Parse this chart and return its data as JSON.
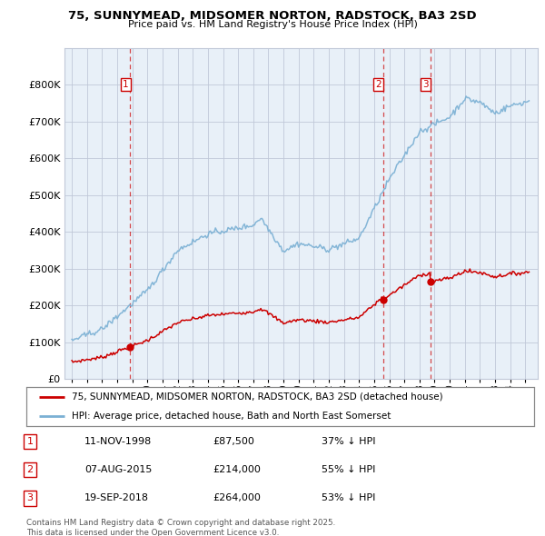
{
  "title": "75, SUNNYMEAD, MIDSOMER NORTON, RADSTOCK, BA3 2SD",
  "subtitle": "Price paid vs. HM Land Registry's House Price Index (HPI)",
  "legend_label_red": "75, SUNNYMEAD, MIDSOMER NORTON, RADSTOCK, BA3 2SD (detached house)",
  "legend_label_blue": "HPI: Average price, detached house, Bath and North East Somerset",
  "footnote": "Contains HM Land Registry data © Crown copyright and database right 2025.\nThis data is licensed under the Open Government Licence v3.0.",
  "transactions": [
    {
      "num": 1,
      "date": "11-NOV-1998",
      "price": "£87,500",
      "pct": "37% ↓ HPI",
      "year": 1998.86,
      "price_val": 87500
    },
    {
      "num": 2,
      "date": "07-AUG-2015",
      "price": "£214,000",
      "pct": "55% ↓ HPI",
      "year": 2015.6,
      "price_val": 214000
    },
    {
      "num": 3,
      "date": "19-SEP-2018",
      "price": "£264,000",
      "pct": "53% ↓ HPI",
      "year": 2018.72,
      "price_val": 264000
    }
  ],
  "red_color": "#cc0000",
  "blue_color": "#7ab0d4",
  "chart_bg": "#e8f0f8",
  "grid_color": "#c0c8d8",
  "ylim": [
    0,
    900000
  ],
  "yticks": [
    0,
    100000,
    200000,
    300000,
    400000,
    500000,
    600000,
    700000,
    800000
  ],
  "xlim": [
    1994.5,
    2025.8
  ],
  "xticks": [
    1995,
    1996,
    1997,
    1998,
    1999,
    2000,
    2001,
    2002,
    2003,
    2004,
    2005,
    2006,
    2007,
    2008,
    2009,
    2010,
    2011,
    2012,
    2013,
    2014,
    2015,
    2016,
    2017,
    2018,
    2019,
    2020,
    2021,
    2022,
    2023,
    2024,
    2025
  ]
}
